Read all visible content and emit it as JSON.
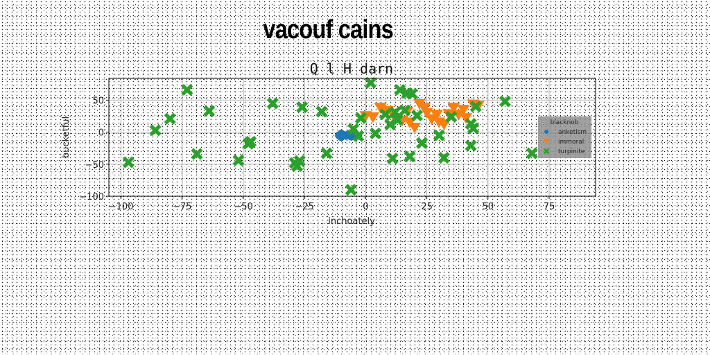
{
  "title": "vacouf cains",
  "chart_data": {
    "type": "scatter",
    "subtitle": "Q l H darn",
    "xlabel": "inchoately",
    "ylabel": "bucketful",
    "xlim": [
      -105,
      94
    ],
    "ylim": [
      -100,
      84
    ],
    "xticks": [
      -100,
      -75,
      -50,
      -25,
      0,
      25,
      50,
      75
    ],
    "yticks": [
      -100,
      -50,
      0,
      50
    ],
    "grid": true,
    "legend": {
      "title": "blacknob",
      "placement": "right"
    },
    "series": [
      {
        "name": "anketism",
        "marker": "circle",
        "color": "#1f77b4",
        "points": [
          [
            -11,
            -5
          ],
          [
            -10,
            -8
          ],
          [
            -10,
            -2
          ],
          [
            -9,
            -4
          ],
          [
            -8,
            -6
          ],
          [
            -7,
            -3
          ],
          [
            -6,
            -7
          ],
          [
            -5,
            -2
          ],
          [
            -4,
            -5
          ],
          [
            -3,
            -6
          ]
        ]
      },
      {
        "name": "immoral",
        "marker": "triangle-down",
        "color": "#ff7f0e",
        "points": [
          [
            0,
            25
          ],
          [
            3,
            23
          ],
          [
            6,
            38
          ],
          [
            9,
            33
          ],
          [
            11,
            28
          ],
          [
            13,
            22
          ],
          [
            15,
            18
          ],
          [
            17,
            32
          ],
          [
            18,
            15
          ],
          [
            20,
            7
          ],
          [
            22,
            44
          ],
          [
            24,
            38
          ],
          [
            25,
            30
          ],
          [
            27,
            20
          ],
          [
            29,
            27
          ],
          [
            30,
            15
          ],
          [
            32,
            12
          ],
          [
            34,
            28
          ],
          [
            36,
            38
          ],
          [
            38,
            27
          ],
          [
            40,
            35
          ],
          [
            41,
            22
          ],
          [
            44,
            43
          ],
          [
            46,
            41
          ]
        ]
      },
      {
        "name": "turpinite",
        "marker": "x",
        "color": "#2ca02c",
        "points": [
          [
            -97,
            -47
          ],
          [
            -86,
            3
          ],
          [
            -80,
            21
          ],
          [
            -73,
            66
          ],
          [
            -69,
            -34
          ],
          [
            -64,
            33
          ],
          [
            -52,
            -44
          ],
          [
            -48,
            -18
          ],
          [
            -47,
            -15
          ],
          [
            -38,
            45
          ],
          [
            -29,
            -48
          ],
          [
            -28,
            -53
          ],
          [
            -27,
            -45
          ],
          [
            -26,
            39
          ],
          [
            -18,
            32
          ],
          [
            -16,
            -33
          ],
          [
            -6,
            -90
          ],
          [
            -5,
            5
          ],
          [
            -3,
            -6
          ],
          [
            -2,
            22
          ],
          [
            2,
            77
          ],
          [
            4,
            -2
          ],
          [
            8,
            28
          ],
          [
            10,
            12
          ],
          [
            11,
            -41
          ],
          [
            12,
            31
          ],
          [
            13,
            19
          ],
          [
            14,
            66
          ],
          [
            16,
            34
          ],
          [
            17,
            61
          ],
          [
            18,
            -38
          ],
          [
            19,
            60
          ],
          [
            21,
            26
          ],
          [
            23,
            -17
          ],
          [
            30,
            -5
          ],
          [
            32,
            -40
          ],
          [
            35,
            24
          ],
          [
            43,
            -21
          ],
          [
            43,
            13
          ],
          [
            44,
            6
          ],
          [
            45,
            40
          ],
          [
            57,
            48
          ],
          [
            68,
            -33
          ]
        ]
      }
    ]
  }
}
